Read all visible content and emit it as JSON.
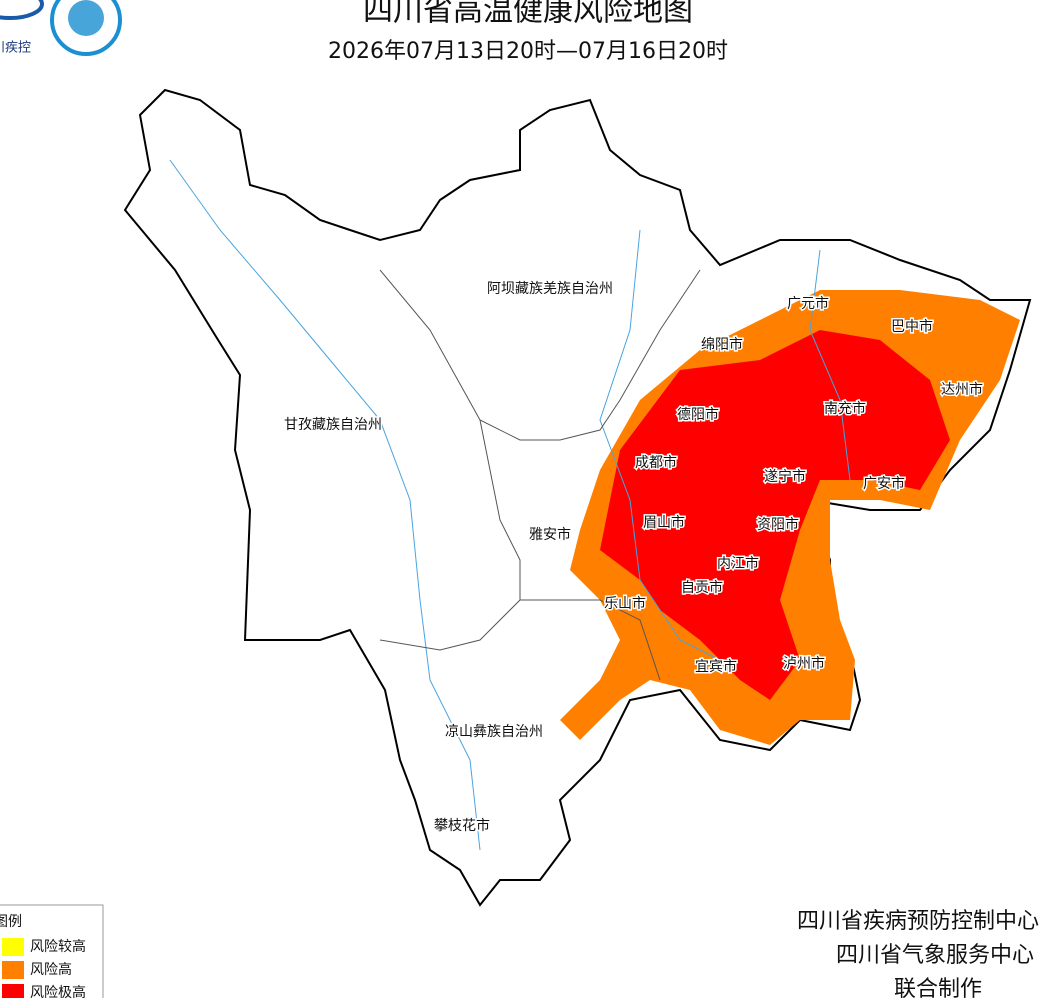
{
  "header": {
    "title": "四川省高温健康风险地图",
    "subtitle": "2026年07月13日20时—07月16日20时",
    "logo_text": "川疾控"
  },
  "map": {
    "regions": [
      {
        "label": "阿坝藏族羌族自治州"
      },
      {
        "label": "甘孜藏族自治州"
      },
      {
        "label": "凉山彝族自治州"
      },
      {
        "label": "攀枝花市"
      },
      {
        "label": "雅安市"
      },
      {
        "label": "乐山市"
      },
      {
        "label": "眉山市"
      },
      {
        "label": "成都市"
      },
      {
        "label": "德阳市"
      },
      {
        "label": "绵阳市"
      },
      {
        "label": "广元市"
      },
      {
        "label": "巴中市"
      },
      {
        "label": "达州市"
      },
      {
        "label": "南充市"
      },
      {
        "label": "遂宁市"
      },
      {
        "label": "广安市"
      },
      {
        "label": "资阳市"
      },
      {
        "label": "内江市"
      },
      {
        "label": "自贡市"
      },
      {
        "label": "宜宾市"
      },
      {
        "label": "泸州市"
      }
    ]
  },
  "legend": {
    "title": "图例",
    "items": [
      {
        "label": "风险较高",
        "color": "#ffff00"
      },
      {
        "label": "风险高",
        "color": "#ff8000"
      },
      {
        "label": "风险极高",
        "color": "#ff0000"
      }
    ]
  },
  "footer": {
    "lines": [
      "四川省疾病预防控制中心",
      "四川省气象服务中心",
      "联合制作"
    ]
  }
}
